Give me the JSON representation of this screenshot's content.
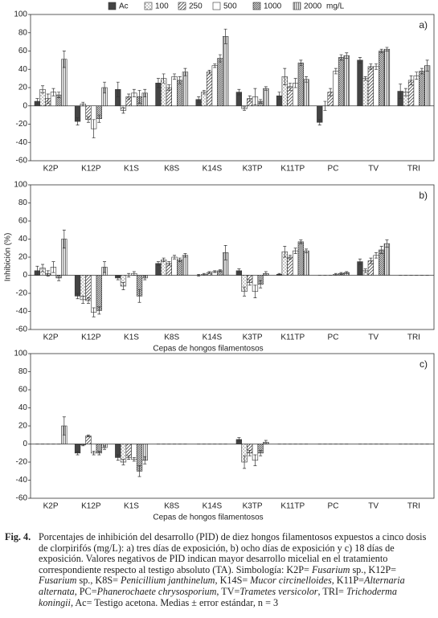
{
  "chart_data": [
    {
      "type": "bar",
      "panel_label": "a)",
      "categories": [
        "K2P",
        "K12P",
        "K1S",
        "K8S",
        "K14S",
        "K3TP",
        "K11TP",
        "PC",
        "TV",
        "TRI"
      ],
      "ylim": [
        -60,
        100
      ],
      "yticks": [
        -60,
        -40,
        -20,
        0,
        20,
        40,
        60,
        80,
        100
      ],
      "legend_unit": "mg/L",
      "series": [
        {
          "name": "Ac",
          "color": "#444444",
          "pattern": "solid",
          "values": [
            5,
            -17,
            18,
            25,
            7,
            15,
            11,
            -18,
            50,
            16
          ],
          "errors": [
            3,
            4,
            8,
            5,
            3,
            3,
            4,
            3,
            3,
            8
          ]
        },
        {
          "name": "100",
          "color": "#444444",
          "pattern": "dots",
          "values": [
            18,
            2,
            -5,
            30,
            15,
            -3,
            32,
            0,
            30,
            15
          ],
          "errors": [
            4,
            2,
            3,
            5,
            2,
            2,
            9,
            5,
            2,
            4
          ]
        },
        {
          "name": "250",
          "color": "#444444",
          "pattern": "diagonal",
          "values": [
            8,
            -15,
            10,
            20,
            37,
            8,
            21,
            15,
            43,
            28
          ],
          "errors": [
            5,
            3,
            3,
            3,
            2,
            3,
            4,
            4,
            3,
            5
          ]
        },
        {
          "name": "500",
          "color": "#444444",
          "pattern": "none",
          "values": [
            15,
            -25,
            14,
            32,
            44,
            10,
            25,
            38,
            43,
            33
          ],
          "errors": [
            4,
            10,
            4,
            3,
            2,
            9,
            5,
            3,
            3,
            4
          ]
        },
        {
          "name": "1000",
          "color": "#444444",
          "pattern": "dense-diagonal",
          "values": [
            12,
            -14,
            10,
            28,
            52,
            5,
            47,
            53,
            60,
            38
          ],
          "errors": [
            3,
            4,
            7,
            4,
            4,
            2,
            3,
            3,
            2,
            3
          ]
        },
        {
          "name": "2000",
          "color": "#444444",
          "pattern": "vertical",
          "values": [
            51,
            20,
            14,
            37,
            76,
            19,
            29,
            55,
            62,
            44
          ],
          "errors": [
            9,
            6,
            4,
            4,
            8,
            2,
            3,
            3,
            2,
            6
          ]
        }
      ]
    },
    {
      "type": "bar",
      "panel_label": "b)",
      "y_label": "Inhibición (%)",
      "x_label": "Cepas de hongos filamentosos",
      "categories": [
        "K2P",
        "K12P",
        "K1S",
        "K8S",
        "K14S",
        "K3TP",
        "K11TP",
        "PC",
        "TV",
        "TRI"
      ],
      "ylim": [
        -60,
        100
      ],
      "yticks": [
        -60,
        -40,
        -20,
        0,
        20,
        40,
        60,
        80,
        100
      ],
      "series": [
        {
          "values": [
            5,
            -23,
            -3,
            13,
            0,
            5,
            1,
            0,
            15,
            0
          ],
          "errors": [
            5,
            3,
            2,
            2,
            1,
            2,
            1,
            0,
            3,
            0
          ]
        },
        {
          "values": [
            8,
            -27,
            -12,
            17,
            1,
            -18,
            26,
            0,
            5,
            0
          ],
          "errors": [
            4,
            4,
            4,
            2,
            1,
            5,
            6,
            0,
            2,
            0
          ]
        },
        {
          "values": [
            2,
            -28,
            0,
            13,
            3,
            -8,
            20,
            0,
            16,
            0
          ],
          "errors": [
            3,
            3,
            2,
            2,
            1,
            3,
            2,
            0,
            3,
            0
          ]
        },
        {
          "values": [
            9,
            -41,
            2,
            20,
            4,
            -18,
            27,
            1,
            22,
            0
          ],
          "errors": [
            6,
            5,
            2,
            2,
            1,
            7,
            3,
            1,
            3,
            0
          ]
        },
        {
          "values": [
            -3,
            -39,
            -23,
            17,
            5,
            -10,
            37,
            2,
            28,
            0
          ],
          "errors": [
            3,
            4,
            7,
            2,
            1,
            4,
            2,
            1,
            4,
            0
          ]
        },
        {
          "values": [
            40,
            9,
            -3,
            22,
            25,
            2,
            27,
            3,
            35,
            0
          ],
          "errors": [
            10,
            6,
            2,
            2,
            8,
            2,
            2,
            1,
            4,
            0
          ]
        }
      ]
    },
    {
      "type": "bar",
      "panel_label": "c)",
      "x_label": "Cepas de hongos filamentosos",
      "categories": [
        "K2P",
        "K12P",
        "K1S",
        "K8S",
        "K14S",
        "K3TP",
        "K11TP",
        "PC",
        "TV",
        "TRI"
      ],
      "ylim": [
        -60,
        100
      ],
      "yticks": [
        -60,
        -40,
        -20,
        0,
        20,
        40,
        60,
        80,
        100
      ],
      "series": [
        {
          "values": [
            0,
            -10,
            -15,
            0,
            0,
            5,
            0,
            0,
            0,
            0
          ],
          "errors": [
            0,
            2,
            3,
            0,
            0,
            2,
            0,
            0,
            0,
            0
          ]
        },
        {
          "values": [
            0,
            -1,
            -20,
            0,
            0,
            -20,
            0,
            0,
            0,
            0
          ],
          "errors": [
            0,
            1,
            3,
            0,
            0,
            7,
            0,
            0,
            0,
            0
          ]
        },
        {
          "values": [
            0,
            9,
            -15,
            0,
            0,
            -10,
            0,
            0,
            0,
            0
          ],
          "errors": [
            0,
            1,
            2,
            0,
            0,
            3,
            0,
            0,
            0,
            0
          ]
        },
        {
          "values": [
            0,
            -10,
            -17,
            0,
            0,
            -18,
            0,
            0,
            0,
            0
          ],
          "errors": [
            0,
            2,
            2,
            0,
            0,
            6,
            0,
            0,
            0,
            0
          ]
        },
        {
          "values": [
            0,
            -10,
            -30,
            0,
            0,
            -10,
            0,
            0,
            0,
            0
          ],
          "errors": [
            0,
            2,
            6,
            0,
            0,
            3,
            0,
            0,
            0,
            0
          ]
        },
        {
          "values": [
            20,
            -4,
            -18,
            0,
            0,
            2,
            0,
            0,
            0,
            0
          ],
          "errors": [
            10,
            2,
            4,
            0,
            0,
            2,
            0,
            0,
            0,
            0
          ]
        }
      ]
    }
  ],
  "caption": {
    "label": "Fig. 4.",
    "segments": [
      {
        "text": "Porcentajes de inhibición del desarrollo (PID) de diez hongos filamentosos expuestos a cinco dosis de clorpirifós (mg/L): a) tres días de exposición, b) ocho días de exposición y c) 18 días de exposición. Valores negativos de PID indican mayor desarrollo micelial en el tratamiento correspondiente respecto al testigo absoluto (TA). Simbología: K2P= "
      },
      {
        "text": "Fusarium",
        "italic": true
      },
      {
        "text": " sp., K12P= "
      },
      {
        "text": "Fusarium",
        "italic": true
      },
      {
        "text": " sp., K8S= "
      },
      {
        "text": "Penicillium janthinelum",
        "italic": true
      },
      {
        "text": ", K14S= "
      },
      {
        "text": "Mucor circinelloides",
        "italic": true
      },
      {
        "text": ", K11P="
      },
      {
        "text": "Alternaria alternata",
        "italic": true
      },
      {
        "text": ", PC="
      },
      {
        "text": "Phanerochaete chrysosporium",
        "italic": true
      },
      {
        "text": ", TV="
      },
      {
        "text": "Trametes versicolor",
        "italic": true
      },
      {
        "text": ", TRI= "
      },
      {
        "text": "Trichoderma koningii",
        "italic": true
      },
      {
        "text": ", Ac= Testigo acetona. Medias ± error estándar, n = 3"
      }
    ]
  }
}
